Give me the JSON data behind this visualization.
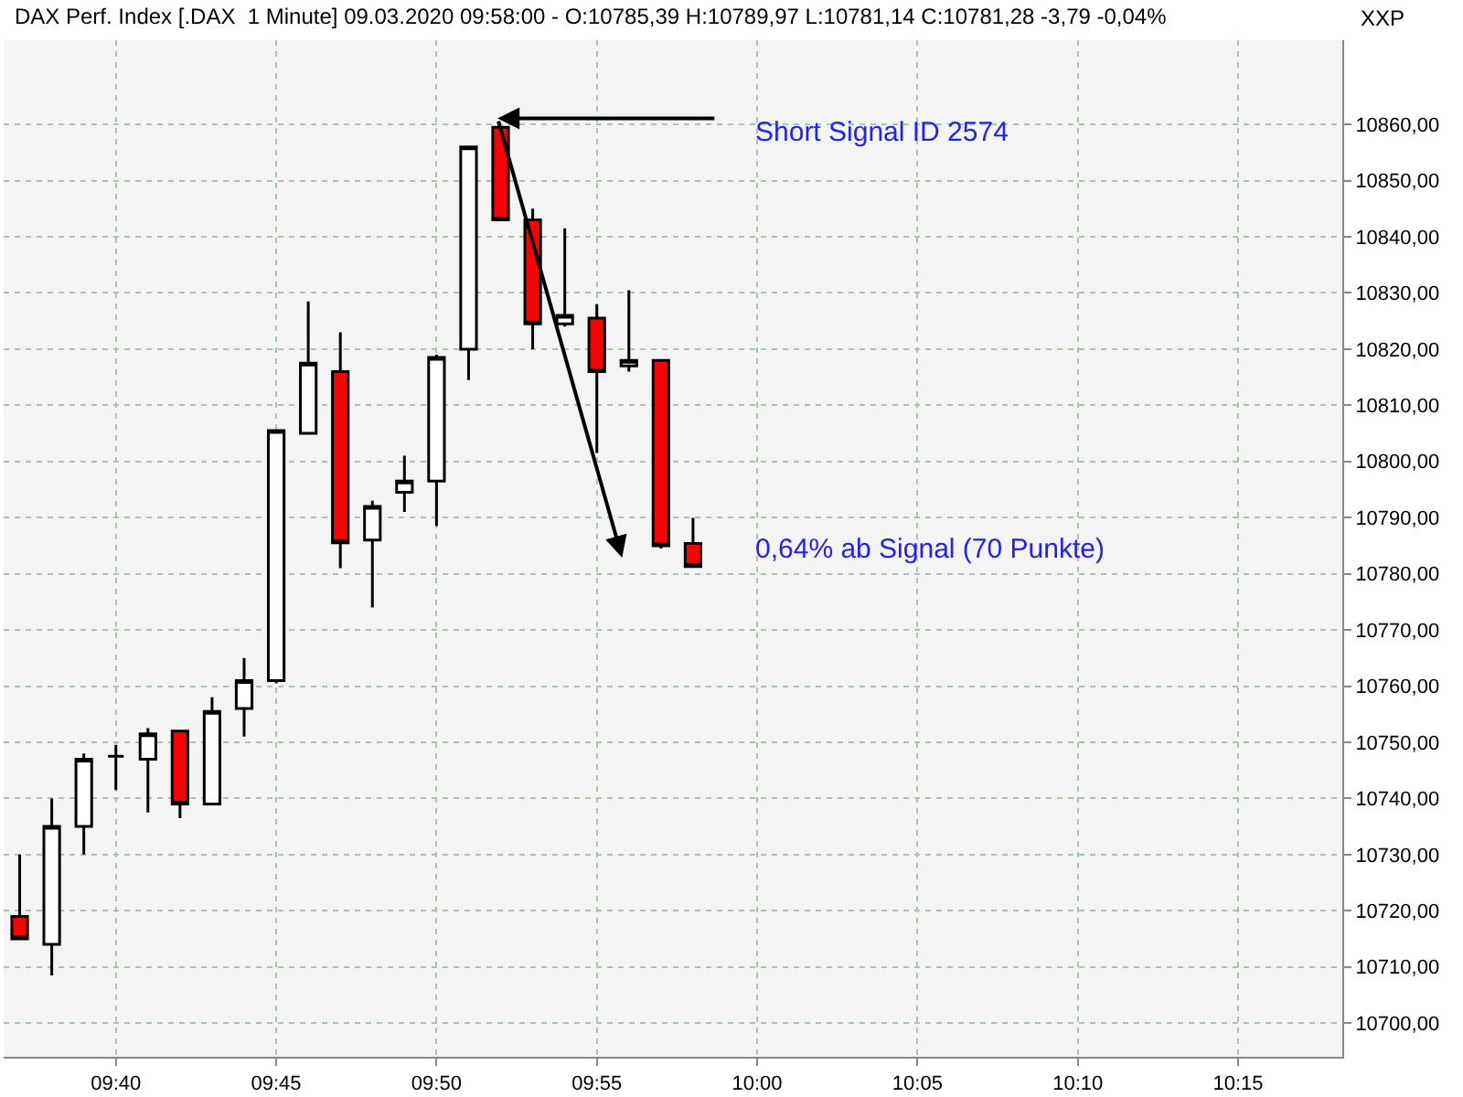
{
  "chart_data": {
    "type": "candlestick",
    "title": "DAX Perf. Index [.DAX  1 Minute] 09.03.2020 09:58:00 - O:10785,39 H:10789,97 L:10781,14 C:10781,28 -3,79 -0,04%",
    "x": [
      "2020-03-09T09:37",
      "2020-03-09T09:38",
      "2020-03-09T09:39",
      "2020-03-09T09:40",
      "2020-03-09T09:41",
      "2020-03-09T09:42",
      "2020-03-09T09:43",
      "2020-03-09T09:44",
      "2020-03-09T09:45",
      "2020-03-09T09:46",
      "2020-03-09T09:47",
      "2020-03-09T09:48",
      "2020-03-09T09:49",
      "2020-03-09T09:50",
      "2020-03-09T09:51",
      "2020-03-09T09:52",
      "2020-03-09T09:53",
      "2020-03-09T09:54",
      "2020-03-09T09:55",
      "2020-03-09T09:56",
      "2020-03-09T09:57",
      "2020-03-09T09:58"
    ],
    "ohlc": [
      [
        10719,
        10730,
        10715,
        10715
      ],
      [
        10714,
        10740,
        10708.5,
        10735
      ],
      [
        10735,
        10748,
        10730,
        10747
      ],
      [
        10747.5,
        10749.5,
        10741.5,
        10747.5
      ],
      [
        10747,
        10752.5,
        10737.5,
        10751.5
      ],
      [
        10752,
        10752,
        10736.5,
        10739
      ],
      [
        10739,
        10758,
        10739,
        10755.5
      ],
      [
        10756,
        10765,
        10751,
        10761
      ],
      [
        10761,
        10805.5,
        10760.5,
        10805.5
      ],
      [
        10805,
        10828.5,
        10805,
        10817.5
      ],
      [
        10816,
        10823,
        10781,
        10785.5
      ],
      [
        10786,
        10793,
        10774,
        10792
      ],
      [
        10794.5,
        10801,
        10791,
        10796.5
      ],
      [
        10796.5,
        10819,
        10788.5,
        10818.5
      ],
      [
        10820,
        10856,
        10814.5,
        10856
      ],
      [
        10859.5,
        10859.5,
        10843,
        10843
      ],
      [
        10843,
        10845,
        10820,
        10824.5
      ],
      [
        10824.5,
        10841.5,
        10824,
        10826
      ],
      [
        10825.5,
        10828,
        10801.5,
        10816
      ],
      [
        10817,
        10830.5,
        10816,
        10818
      ],
      [
        10818,
        10818,
        10784.5,
        10785
      ],
      [
        10785.39,
        10789.97,
        10781.14,
        10781.28
      ]
    ],
    "xlim": [
      "2020-03-09T09:36:30",
      "2020-03-09T10:18:15"
    ],
    "xticks": [
      {
        "value": "2020-03-09T09:40",
        "label": "09:40"
      },
      {
        "value": "2020-03-09T09:45",
        "label": "09:45"
      },
      {
        "value": "2020-03-09T09:50",
        "label": "09:50"
      },
      {
        "value": "2020-03-09T09:55",
        "label": "09:55"
      },
      {
        "value": "2020-03-09T10:00",
        "label": "10:00"
      },
      {
        "value": "2020-03-09T10:05",
        "label": "10:05"
      },
      {
        "value": "2020-03-09T10:10",
        "label": "10:10"
      },
      {
        "value": "2020-03-09T10:15",
        "label": "10:15"
      }
    ],
    "ylim": [
      10694,
      10875
    ],
    "yticks": [
      {
        "value": 10700,
        "label": "10700,00"
      },
      {
        "value": 10710,
        "label": "10710,00"
      },
      {
        "value": 10720,
        "label": "10720,00"
      },
      {
        "value": 10730,
        "label": "10730,00"
      },
      {
        "value": 10740,
        "label": "10740,00"
      },
      {
        "value": 10750,
        "label": "10750,00"
      },
      {
        "value": 10760,
        "label": "10760,00"
      },
      {
        "value": 10770,
        "label": "10770,00"
      },
      {
        "value": 10780,
        "label": "10780,00"
      },
      {
        "value": 10790,
        "label": "10790,00"
      },
      {
        "value": 10800,
        "label": "10800,00"
      },
      {
        "value": 10810,
        "label": "10810,00"
      },
      {
        "value": 10820,
        "label": "10820,00"
      },
      {
        "value": 10830,
        "label": "10830,00"
      },
      {
        "value": 10840,
        "label": "10840,00"
      },
      {
        "value": 10850,
        "label": "10850,00"
      },
      {
        "value": 10860,
        "label": "10860,00"
      }
    ],
    "grid": true,
    "annotations": [
      "Short Signal ID 2574",
      "0,64% ab Signal (70 Punkte)",
      "XXP"
    ]
  }
}
